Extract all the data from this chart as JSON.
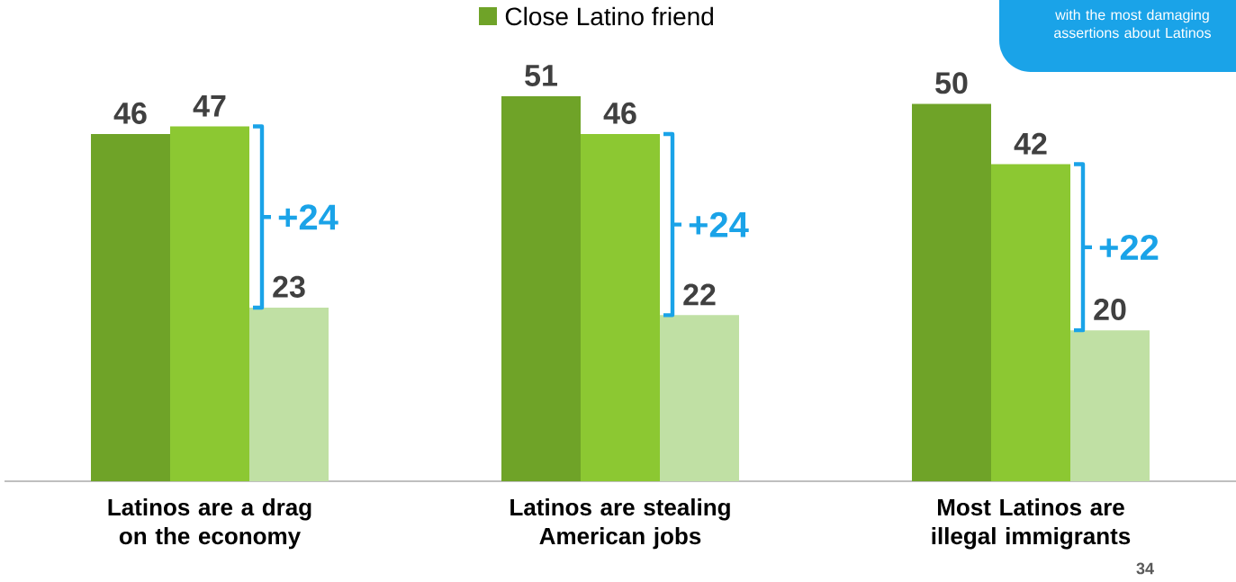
{
  "chart_data": {
    "type": "bar",
    "categories": [
      "Latinos are a drag on the economy",
      "Latinos are stealing American jobs",
      "Most Latinos are illegal immigrants"
    ],
    "series": [
      {
        "name": "Close Latino friend",
        "color": "#6fa328",
        "values": [
          46,
          51,
          50
        ]
      },
      {
        "color": "#8cc832",
        "values": [
          47,
          46,
          42
        ]
      },
      {
        "color": "#c0e0a4",
        "values": [
          23,
          22,
          20
        ]
      }
    ],
    "data_labels": true,
    "legend": "top",
    "annotations": [
      "+24",
      "+24",
      "+22",
      "with the most damaging assertions about Latinos",
      "34"
    ]
  }
}
